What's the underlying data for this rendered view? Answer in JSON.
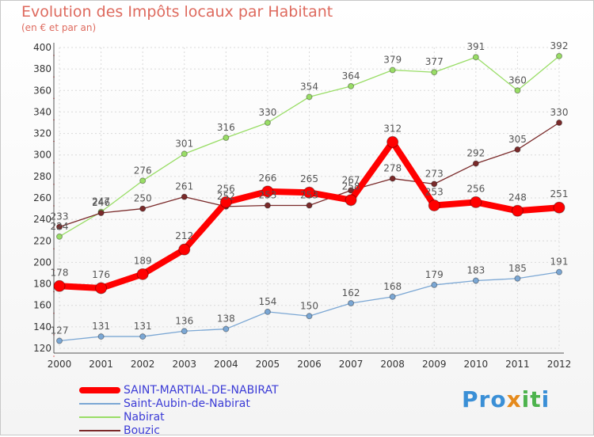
{
  "header": {
    "title": "Evolution des Impôts locaux par Habitant",
    "subtitle": "(en € et par an)"
  },
  "logo": {
    "text": "Proxiti",
    "parts": [
      "Pro",
      "x",
      "it",
      "i"
    ]
  },
  "chart_data": {
    "type": "line",
    "title": "Evolution des Impôts locaux par Habitant",
    "subtitle": "(en € et par an)",
    "xlabel": "",
    "ylabel": "",
    "categories": [
      "2000",
      "2001",
      "2002",
      "2003",
      "2004",
      "2005",
      "2006",
      "2007",
      "2008",
      "2009",
      "2010",
      "2011",
      "2012"
    ],
    "ylim": [
      120,
      400
    ],
    "yticks": [
      120,
      140,
      160,
      180,
      200,
      220,
      240,
      260,
      280,
      300,
      320,
      340,
      360,
      380,
      400
    ],
    "grid": true,
    "legend_position": "bottom-left",
    "series": [
      {
        "name": "SAINT-MARTIAL-DE-NABIRAT",
        "color": "#ff0000",
        "width": 8,
        "marker": 7,
        "values": [
          178,
          176,
          189,
          212,
          256,
          266,
          265,
          258,
          312,
          253,
          256,
          248,
          251
        ]
      },
      {
        "name": "Saint-Aubin-de-Nabirat",
        "color": "#7ba7d4",
        "width": 1.3,
        "marker": 3.5,
        "values": [
          127,
          131,
          131,
          136,
          138,
          154,
          150,
          162,
          168,
          179,
          183,
          185,
          191
        ]
      },
      {
        "name": "Nabirat",
        "color": "#99dd66",
        "width": 1.3,
        "marker": 3.5,
        "values": [
          224,
          247,
          276,
          301,
          316,
          330,
          354,
          364,
          379,
          377,
          391,
          360,
          392
        ]
      },
      {
        "name": "Bouzic",
        "color": "#7a2a2a",
        "width": 1.3,
        "marker": 3.5,
        "values": [
          233,
          246,
          250,
          261,
          252,
          253,
          253,
          267,
          278,
          273,
          292,
          305,
          330
        ]
      }
    ]
  }
}
